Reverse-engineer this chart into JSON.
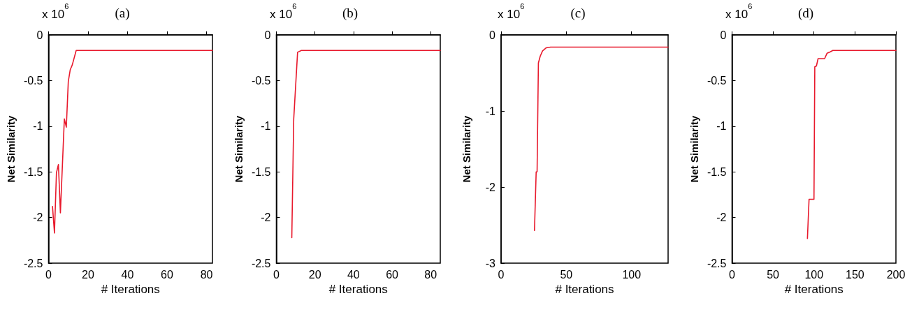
{
  "chart_data": [
    {
      "type": "line",
      "title": "(a)",
      "xlabel": "# Iterations",
      "ylabel": "Net Similarity",
      "annotations": [
        "x 10$^{6}$"
      ],
      "xlim": [
        0,
        83
      ],
      "xticks": [
        0,
        20,
        40,
        60,
        80
      ],
      "ylim": [
        -2.5,
        0
      ],
      "yticks": [
        -2.5,
        -2,
        -1.5,
        -1,
        -0.5,
        0
      ],
      "grid": false,
      "marker": "none",
      "series": [
        {
          "color": "#e8192c",
          "x": [
            2,
            3,
            4,
            5,
            6,
            8,
            9,
            10,
            11,
            12,
            14,
            83
          ],
          "values": [
            -1.88,
            -2.17,
            -1.51,
            -1.42,
            -1.95,
            -0.92,
            -1.01,
            -0.51,
            -0.38,
            -0.33,
            -0.17,
            -0.17
          ]
        }
      ]
    },
    {
      "type": "line",
      "title": "(b)",
      "xlabel": "# Iterations",
      "ylabel": "Net Similarity",
      "annotations": [
        "x 10$^{6}$"
      ],
      "xlim": [
        0,
        85
      ],
      "xticks": [
        0,
        20,
        40,
        60,
        80
      ],
      "ylim": [
        -2.5,
        0
      ],
      "yticks": [
        -2.5,
        -2,
        -1.5,
        -1,
        -0.5,
        0
      ],
      "grid": false,
      "marker": "none",
      "series": [
        {
          "color": "#e8192c",
          "x": [
            8,
            9,
            11,
            13,
            85
          ],
          "values": [
            -2.22,
            -0.92,
            -0.19,
            -0.17,
            -0.17
          ]
        }
      ]
    },
    {
      "type": "line",
      "title": "(c)",
      "xlabel": "# Iterations",
      "ylabel": "Net Similarity",
      "annotations": [
        "x 10$^{6}$"
      ],
      "xlim": [
        0,
        128
      ],
      "xticks": [
        0,
        50,
        100
      ],
      "ylim": [
        -3,
        0
      ],
      "yticks": [
        -3,
        -2,
        -1,
        0
      ],
      "grid": false,
      "marker": "none",
      "series": [
        {
          "color": "#e8192c",
          "x": [
            25.6,
            26.9,
            27.6,
            28.6,
            30,
            31.8,
            34.5,
            38,
            128
          ],
          "values": [
            -2.57,
            -1.8,
            -1.8,
            -0.37,
            -0.28,
            -0.21,
            -0.17,
            -0.16,
            -0.16
          ]
        }
      ]
    },
    {
      "type": "line",
      "title": "(d)",
      "xlabel": "# Iterations",
      "ylabel": "Net Similarity",
      "annotations": [
        "x 10$^{6}$"
      ],
      "xlim": [
        0,
        200
      ],
      "xticks": [
        0,
        50,
        100,
        150,
        200
      ],
      "ylim": [
        -2.5,
        0
      ],
      "yticks": [
        -2.5,
        -2,
        -1.5,
        -1,
        -0.5,
        0
      ],
      "grid": false,
      "marker": "none",
      "series": [
        {
          "color": "#e8192c",
          "x": [
            92,
            94,
            100,
            101,
            103,
            105,
            113,
            116,
            120,
            123,
            200
          ],
          "values": [
            -2.23,
            -1.8,
            -1.8,
            -0.35,
            -0.34,
            -0.26,
            -0.26,
            -0.2,
            -0.185,
            -0.17,
            -0.17
          ]
        }
      ]
    }
  ]
}
